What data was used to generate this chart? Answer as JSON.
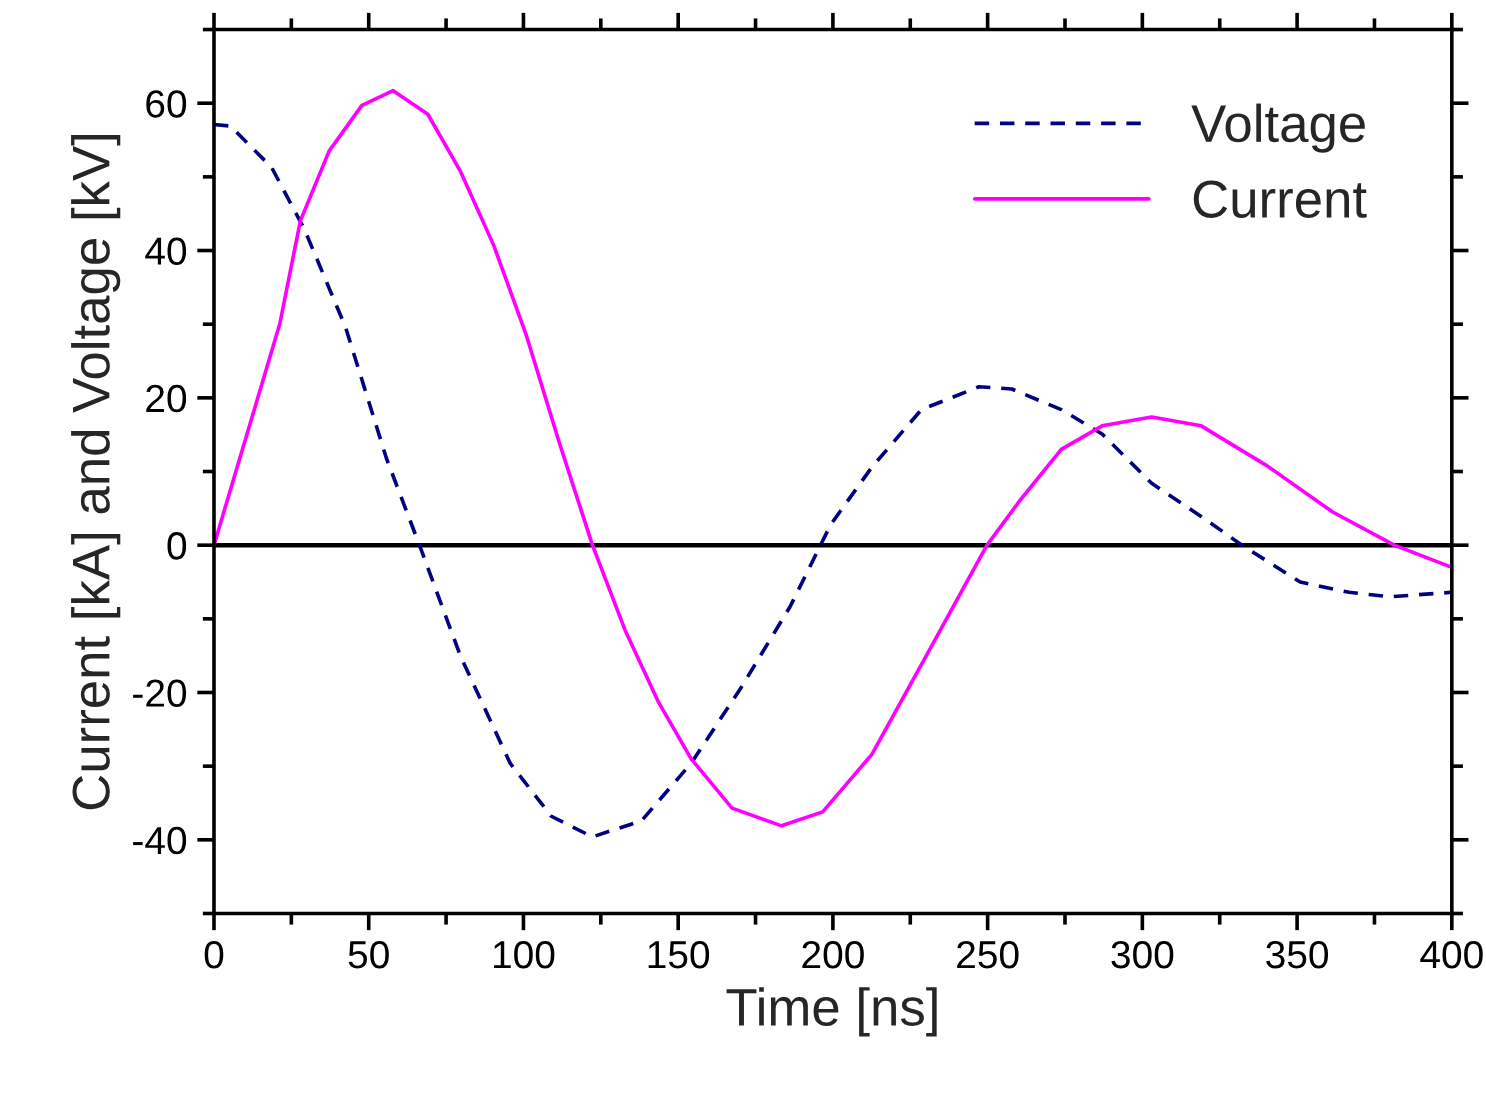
{
  "chart_data": {
    "type": "line",
    "xlabel": "Time [ns]",
    "ylabel": "Current [kA] and Voltage [kV]",
    "xlim": [
      0,
      400
    ],
    "xticks": [
      0,
      50,
      100,
      150,
      200,
      250,
      300,
      350,
      400
    ],
    "ylim": [
      -50,
      70
    ],
    "yticks": [
      -40,
      -20,
      0,
      20,
      40,
      60
    ],
    "grid": false,
    "legend": "top right",
    "ref_lines": [
      {
        "axis": "y",
        "value": 0,
        "color": "#000000",
        "line_style": "solid"
      }
    ],
    "series": [
      {
        "name": "Voltage",
        "color": "#000080",
        "line_style": "dashed",
        "x": [
          0,
          5.3,
          18.6,
          29.2,
          42.5,
          55.8,
          66.4,
          79.7,
          95.7,
          109,
          122.3,
          138.2,
          154.2,
          170.1,
          186.1,
          199.3,
          212.6,
          228.6,
          247.2,
          257.8,
          273.8,
          287,
          303,
          319,
          332.2,
          351,
          366.8,
          380,
          400
        ],
        "values": [
          57.1,
          56.9,
          51.3,
          42.9,
          29.6,
          11.7,
          0,
          -15.1,
          -29.6,
          -36.8,
          -39.6,
          -37.4,
          -29.6,
          -19.5,
          -8.4,
          2.8,
          10.6,
          18.4,
          21.5,
          21.2,
          18.4,
          15.1,
          8.4,
          3.9,
          0,
          -5.0,
          -6.4,
          -7.0,
          -6.4
        ]
      },
      {
        "name": "Current",
        "color": "#ff00ff",
        "line_style": "solid",
        "x": [
          0,
          21.3,
          27.9,
          37.2,
          47.8,
          57.9,
          69.1,
          79.7,
          90.4,
          101,
          111.6,
          122.3,
          133,
          143.5,
          154.2,
          167.4,
          183.4,
          196.7,
          212.6,
          228.6,
          249.8,
          260.5,
          273.8,
          287,
          303,
          319,
          340.2,
          361.5,
          381.4,
          400
        ],
        "values": [
          0,
          30.1,
          44,
          53.5,
          59.7,
          61.7,
          58.5,
          50.7,
          40.7,
          28.4,
          13.9,
          0,
          -11.7,
          -21.2,
          -29,
          -35.7,
          -38.1,
          -36.2,
          -28.4,
          -16.2,
          0,
          6.1,
          13,
          16.2,
          17.4,
          16.2,
          10.8,
          4.5,
          0,
          -3.0
        ]
      }
    ]
  }
}
